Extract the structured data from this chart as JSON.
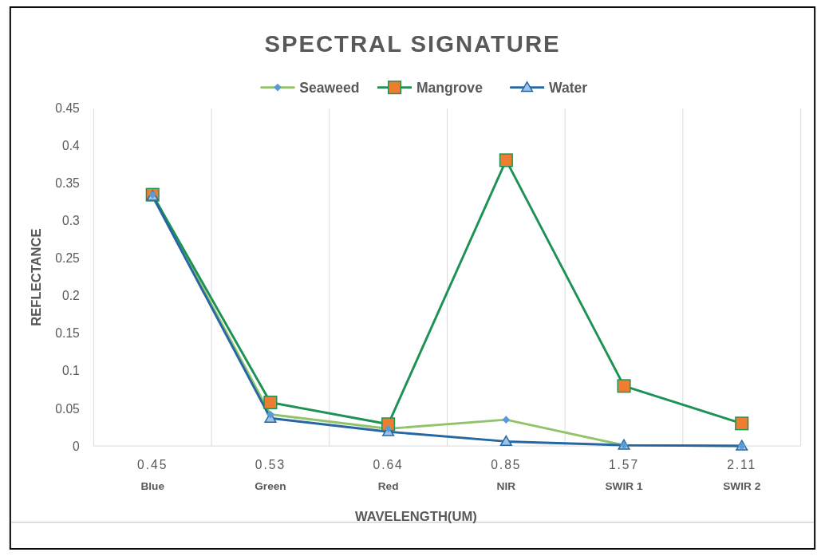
{
  "chart_data": {
    "type": "line",
    "title": "SPECTRAL SIGNATURE",
    "xlabel": "WAVELENGTH(UM)",
    "ylabel": "REFLECTANCE",
    "categories": [
      "0.45\nBlue",
      "0.53\nGreen",
      "0.64\nRed",
      "0.85\nNIR",
      "1.57\nSWIR 1",
      "2.11\nSWIR 2"
    ],
    "series": [
      {
        "name": "Seaweed",
        "color": "#92c36a",
        "marker": "diamond",
        "values": [
          0.335,
          0.042,
          0.023,
          0.035,
          0.001,
          0.0
        ]
      },
      {
        "name": "Mangrove",
        "color": "#1e9154",
        "marker": "square",
        "values": [
          0.335,
          0.058,
          0.029,
          0.381,
          0.08,
          0.03
        ]
      },
      {
        "name": "Water",
        "color": "#2667a3",
        "marker": "triangle",
        "values": [
          0.333,
          0.037,
          0.019,
          0.006,
          0.001,
          0.0
        ]
      }
    ],
    "ylim": [
      0,
      0.45
    ],
    "yticks": [
      0,
      0.05,
      0.1,
      0.15,
      0.2,
      0.25,
      0.3,
      0.35,
      0.4,
      0.45
    ],
    "grid": "x",
    "legend": "top"
  }
}
